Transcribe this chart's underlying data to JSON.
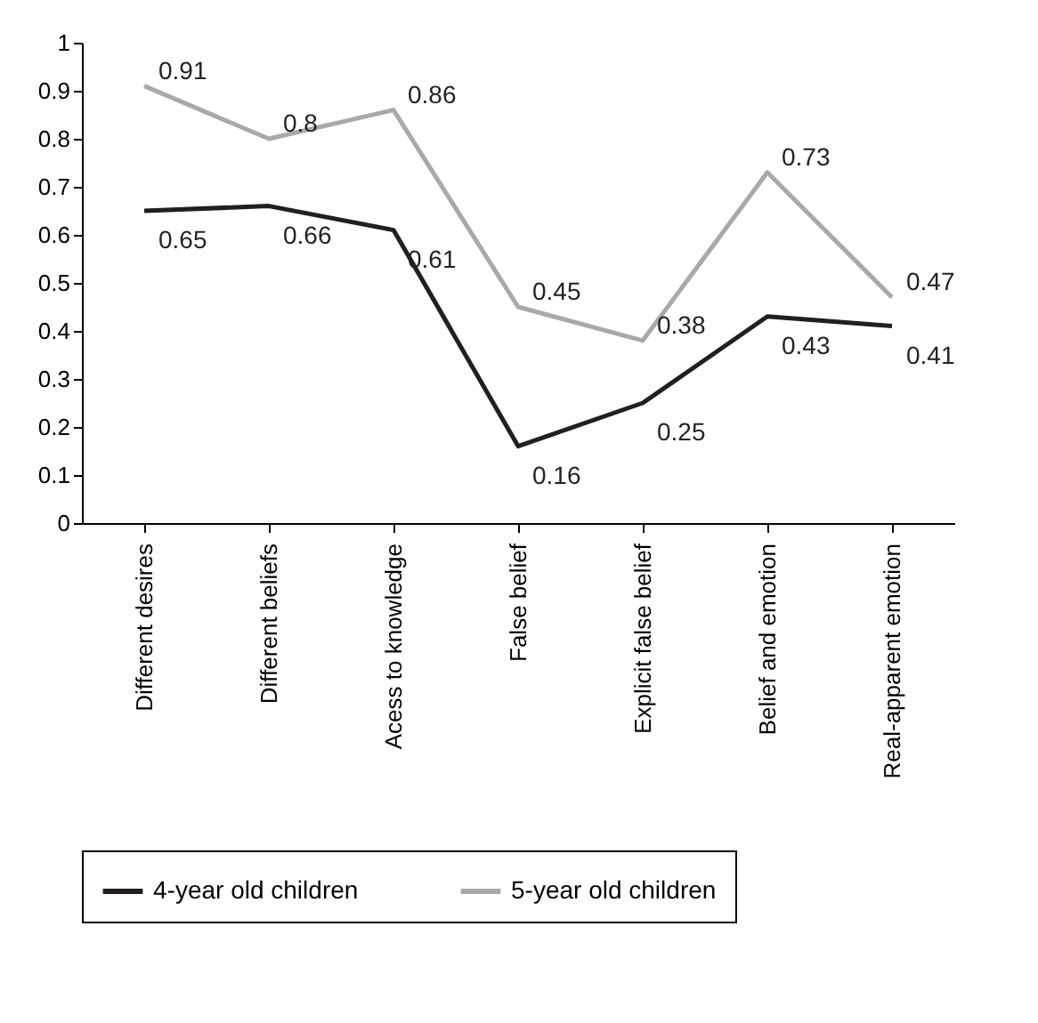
{
  "chart_data": {
    "type": "line",
    "categories": [
      "Different desires",
      "Different beliefs",
      "Acess to knowledge",
      "False belief",
      "Explicit false belief",
      "Belief and emotion",
      "Real-apparent emotion"
    ],
    "series": [
      {
        "name": "4-year old children",
        "color": "#231f20",
        "values": [
          0.65,
          0.66,
          0.61,
          0.16,
          0.25,
          0.43,
          0.41
        ]
      },
      {
        "name": "5-year old children",
        "color": "#a7a9ac",
        "values": [
          0.91,
          0.8,
          0.86,
          0.45,
          0.38,
          0.73,
          0.47
        ]
      }
    ],
    "ylim": [
      0,
      1
    ],
    "yticks": [
      0,
      0.1,
      0.2,
      0.3,
      0.4,
      0.5,
      0.6,
      0.7,
      0.8,
      0.9,
      1
    ],
    "data_labels": true,
    "legend": "bottom"
  }
}
